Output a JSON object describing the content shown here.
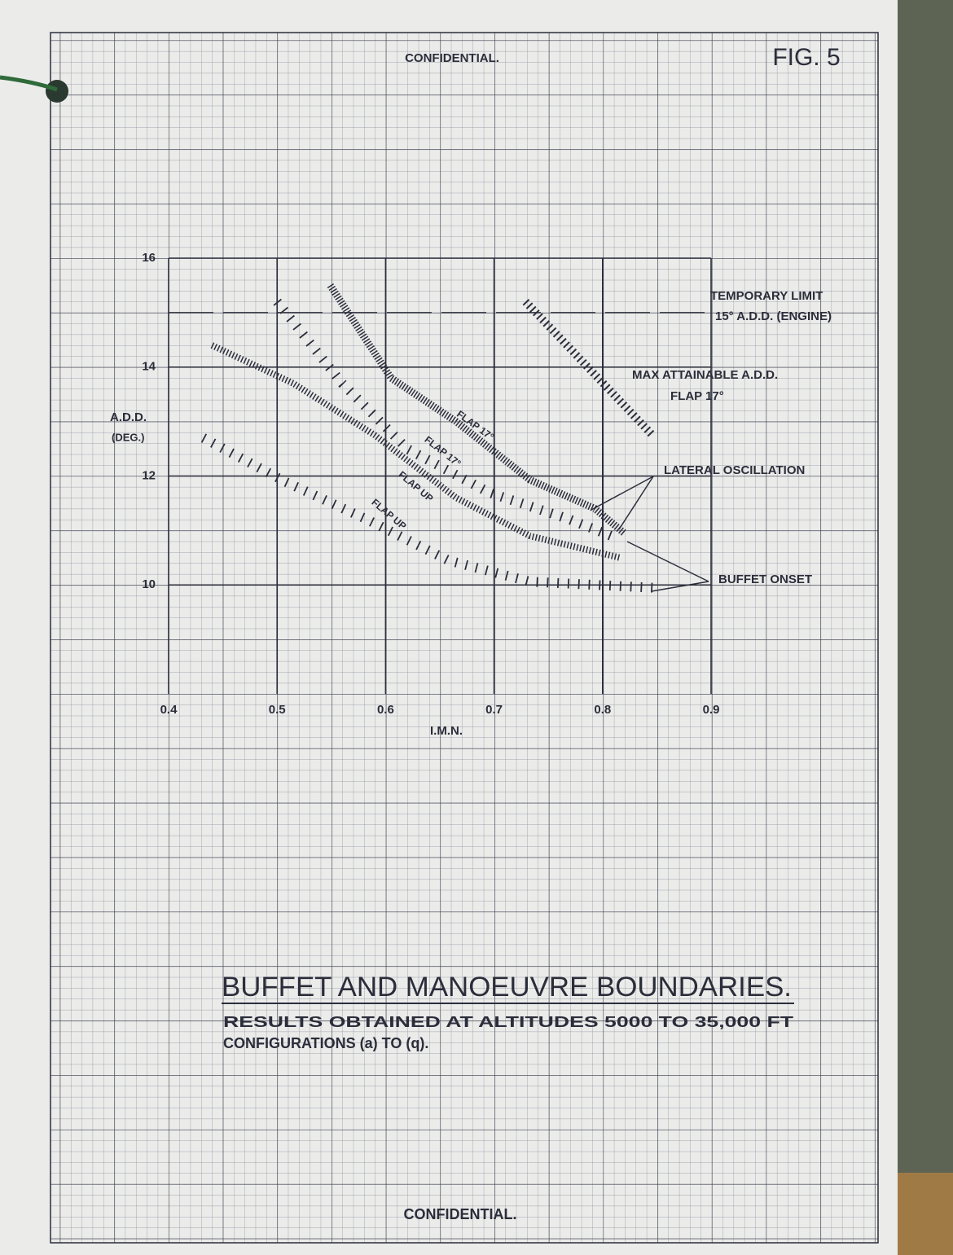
{
  "chart_data": {
    "type": "line",
    "header": "CONFIDENTIAL.",
    "figure": "FIG. 5",
    "footer": "CONFIDENTIAL.",
    "title": "BUFFET AND MANOEUVRE BOUNDARIES.",
    "subtitle": [
      "RESULTS OBTAINED AT ALTITUDES 5000 TO 35,000 FT",
      "CONFIGURATIONS (a) TO (q)."
    ],
    "x_label": "I.M.N.",
    "y_label": [
      "A.D.D.",
      "(DEG.)"
    ],
    "xlim": [
      0.4,
      0.9
    ],
    "ylim": [
      8,
      16
    ],
    "xticks": [
      0.4,
      0.5,
      0.6,
      0.7,
      0.8,
      0.9
    ],
    "yticks": [
      10,
      12,
      14,
      16
    ],
    "color": "#2b2d3a",
    "annotations": [
      "15° A.D.D. (ENGINE)",
      "FLAP 17°",
      "LATERAL OSCILLATION",
      "BUFFET ONSET"
    ],
    "series": [
      {
        "name": "TEMPORARY LIMIT",
        "x": [
          0.4,
          0.9
        ],
        "values": [
          15,
          15
        ]
      },
      {
        "name": "MAX ATTAINABLE A.D.D.",
        "x": [
          0.729,
          0.846
        ],
        "values": [
          15.2,
          12.75
        ]
      },
      {
        "name": "FLAP 17°",
        "x": [
          0.549,
          0.605,
          0.665,
          0.733,
          0.793,
          0.82
        ],
        "values": [
          15.5,
          13.8,
          13.0,
          11.93,
          11.4,
          10.95
        ]
      },
      {
        "name": "FLAP 17°",
        "x": [
          0.5,
          0.56,
          0.62,
          0.695,
          0.77,
          0.808
        ],
        "values": [
          15.2,
          13.7,
          12.5,
          11.7,
          11.2,
          10.9
        ]
      },
      {
        "name": "FLAP UP",
        "x": [
          0.44,
          0.515,
          0.59,
          0.665,
          0.733,
          0.816
        ],
        "values": [
          14.4,
          13.7,
          12.75,
          11.6,
          10.9,
          10.5
        ]
      },
      {
        "name": "FLAP UP",
        "x": [
          0.432,
          0.507,
          0.583,
          0.658,
          0.733,
          0.846
        ],
        "values": [
          12.7,
          11.9,
          11.2,
          10.45,
          10.06,
          9.95
        ]
      }
    ]
  }
}
